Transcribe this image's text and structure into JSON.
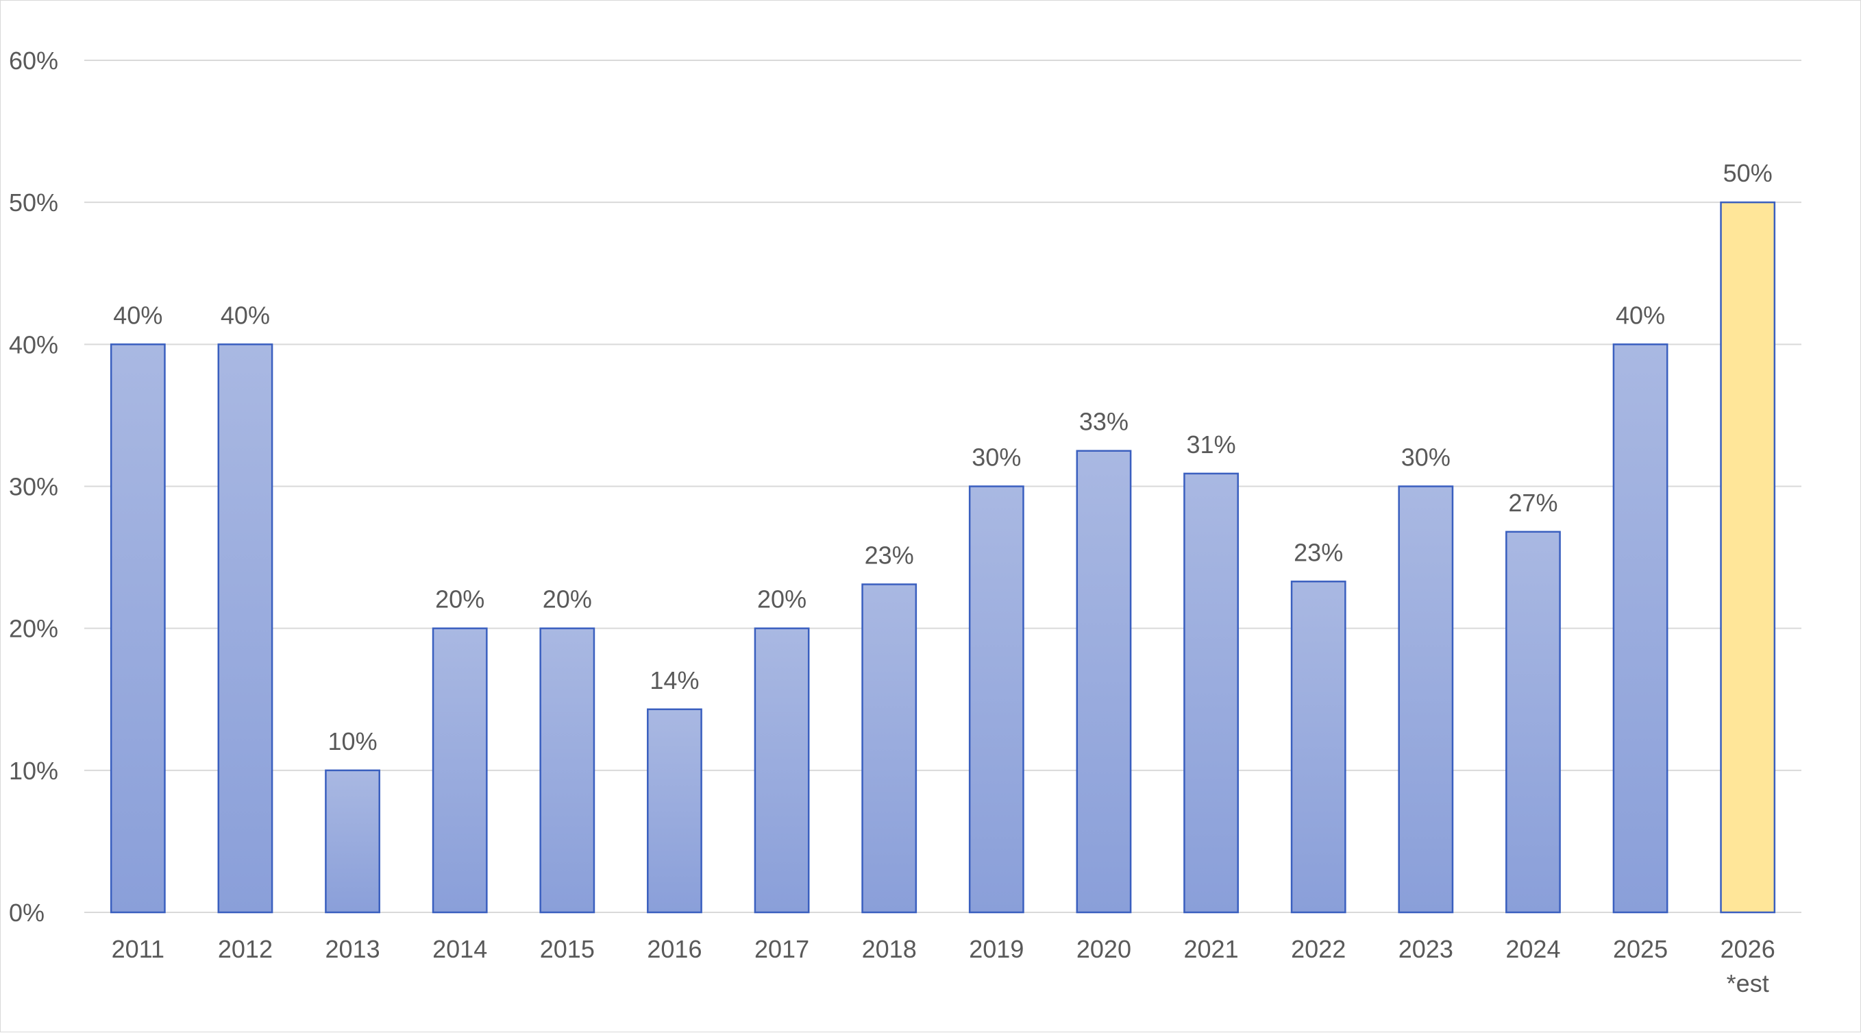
{
  "chart_data": {
    "type": "bar",
    "title": "",
    "xlabel": "",
    "ylabel": "",
    "categories": [
      "2011",
      "2012",
      "2013",
      "2014",
      "2015",
      "2016",
      "2017",
      "2018",
      "2019",
      "2020",
      "2021",
      "2022",
      "2023",
      "2024",
      "2025",
      "2026"
    ],
    "category_sublabels": [
      "",
      "",
      "",
      "",
      "",
      "",
      "",
      "",
      "",
      "",
      "",
      "",
      "",
      "",
      "",
      "*est"
    ],
    "values": [
      40,
      40,
      10,
      20,
      20,
      14.3,
      20,
      23.1,
      30,
      32.5,
      30.9,
      23.3,
      30,
      26.8,
      40,
      50
    ],
    "data_labels": [
      "40%",
      "40%",
      "10%",
      "20%",
      "20%",
      "14%",
      "20%",
      "23%",
      "30%",
      "33%",
      "31%",
      "23%",
      "30%",
      "27%",
      "40%",
      "50%"
    ],
    "ylim": [
      0,
      60
    ],
    "yticks": [
      0,
      10,
      20,
      30,
      40,
      50,
      60
    ],
    "ytick_labels": [
      "0%",
      "10%",
      "20%",
      "30%",
      "40%",
      "50%",
      "60%"
    ],
    "grid": true,
    "legend": "none",
    "colors": {
      "bar_fill_top": "#a9b8e2",
      "bar_fill_bottom": "#8a9fd9",
      "bar_stroke": "#3a5fbf",
      "estimate_fill": "#ffe699",
      "estimate_stroke": "#3a5fbf",
      "gridline": "#d9d9d9",
      "text": "#595959"
    },
    "estimate_index": 15
  }
}
